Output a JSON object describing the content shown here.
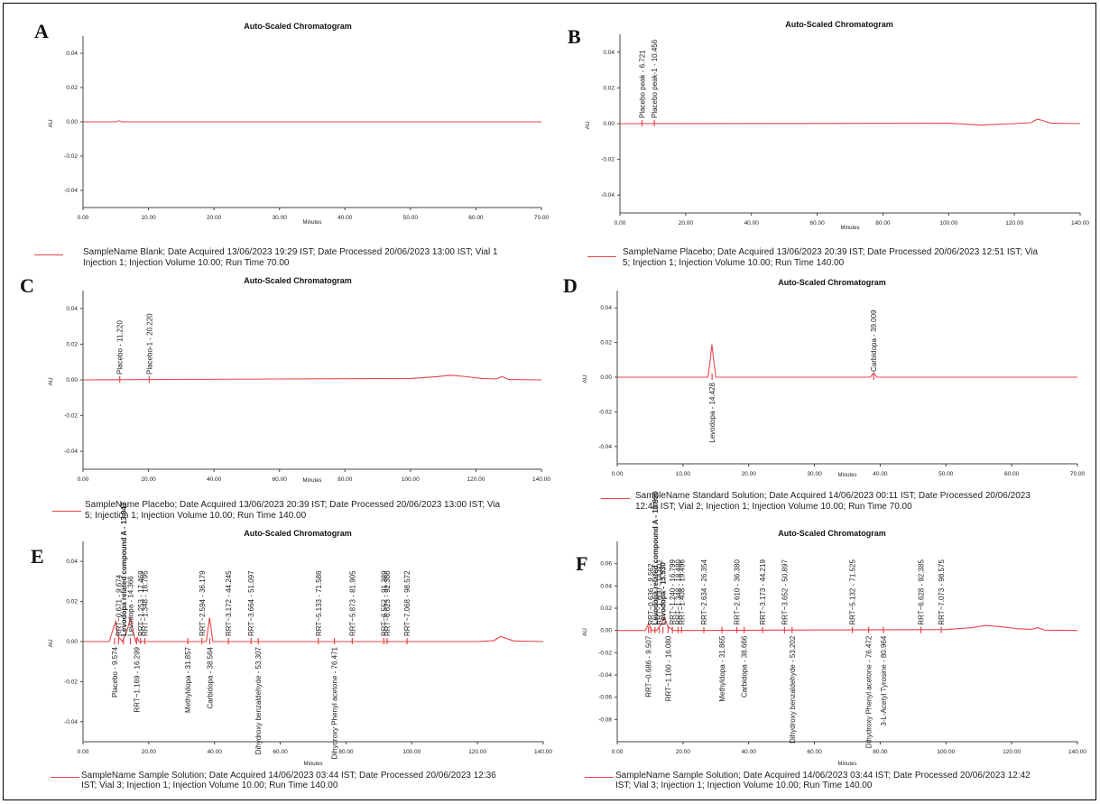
{
  "colors": {
    "trace": "#e8454a",
    "axis": "#444444",
    "text": "#222222"
  },
  "chart_data": [
    {
      "type": "line",
      "panel": "A",
      "title": "Auto-Scaled Chromatogram",
      "xlabel": "Minutes",
      "ylabel": "AU",
      "xlim": [
        0,
        70
      ],
      "ylim": [
        -0.05,
        0.05
      ],
      "xticks": [
        "0.00",
        "10.00",
        "20.00",
        "30.00",
        "40.00",
        "50.00",
        "60.00",
        "70.00"
      ],
      "yticks": [
        "0.04",
        "0.02",
        "0.00",
        "-0.02",
        "-0.04"
      ],
      "series": [
        {
          "x": [
            0,
            5,
            5.5,
            6,
            70
          ],
          "y": [
            0,
            0,
            0.0006,
            0,
            0
          ]
        }
      ],
      "peaks": [],
      "legend": [
        "SampleName Blank; Date Acquired 13/06/2023 19:29 IST; Date Processed 20/06/2023 13:00 IST; Vial 1",
        "Injection 1; Injection Volume 10.00; Run Time 70.00"
      ]
    },
    {
      "type": "line",
      "panel": "B",
      "title": "Auto-Scaled Chromatogram",
      "xlabel": "Minutes",
      "ylabel": "AU",
      "xlim": [
        0,
        140
      ],
      "ylim": [
        -0.05,
        0.05
      ],
      "xticks": [
        "0.00",
        "20.00",
        "40.00",
        "60.00",
        "80.00",
        "100.00",
        "120.00",
        "140.00"
      ],
      "yticks": [
        "0.04",
        "0.02",
        "0.00",
        "-0.02",
        "-0.04"
      ],
      "series": [
        {
          "x": [
            0,
            100,
            110,
            120,
            125,
            127,
            129,
            131,
            140
          ],
          "y": [
            0,
            0.0002,
            -0.0008,
            0,
            0.0005,
            0.0025,
            0.0015,
            0.0003,
            0
          ]
        }
      ],
      "peaks": [
        {
          "x": 6.721,
          "label": "Placebo peak - 6.721"
        },
        {
          "x": 10.456,
          "label": "Placebo peak-1 - 10.456"
        }
      ],
      "legend": [
        "SampleName Placebo; Date Acquired 13/06/2023 20:39 IST; Date Processed 20/06/2023 12:51 IST; Via",
        "5; Injection 1; Injection Volume 10.00; Run Time 140.00"
      ]
    },
    {
      "type": "line",
      "panel": "C",
      "title": "Auto-Scaled Chromatogram",
      "xlabel": "Minutes",
      "ylabel": "AU",
      "xlim": [
        0,
        140
      ],
      "ylim": [
        -0.05,
        0.05
      ],
      "xticks": [
        "0.00",
        "20.00",
        "40.00",
        "60.00",
        "80.00",
        "100.00",
        "120.00",
        "140.00"
      ],
      "yticks": [
        "0.04",
        "0.02",
        "0.00",
        "-0.02",
        "-0.04"
      ],
      "series": [
        {
          "x": [
            0,
            60,
            100,
            108,
            112,
            116,
            122,
            126,
            128,
            130,
            140
          ],
          "y": [
            0,
            0.0005,
            0.0008,
            0.0018,
            0.0026,
            0.002,
            0.0008,
            0.0005,
            0.0018,
            0.0002,
            0
          ]
        }
      ],
      "peaks": [
        {
          "x": 11.22,
          "label": "Placebo - 11.220"
        },
        {
          "x": 20.22,
          "label": "Placebo-1 - 20.220"
        }
      ],
      "legend": [
        "SampleName Placebo; Date Acquired 13/06/2023 20:39 IST; Date Processed 20/06/2023 13:00 IST; Via",
        "5; Injection 1; Injection Volume 10.00; Run Time 140.00"
      ]
    },
    {
      "type": "line",
      "panel": "D",
      "title": "Auto-Scaled Chromatogram",
      "xlabel": "Minutes",
      "ylabel": "AU",
      "xlim": [
        0,
        70
      ],
      "ylim": [
        -0.05,
        0.05
      ],
      "xticks": [
        "0.00",
        "10.00",
        "20.00",
        "30.00",
        "40.00",
        "50.00",
        "60.00",
        "70.00"
      ],
      "yticks": [
        "0.04",
        "0.02",
        "0.00",
        "-0.02",
        "-0.04"
      ],
      "series": [
        {
          "x": [
            0,
            13.8,
            14.2,
            14.4,
            14.6,
            15,
            38.5,
            39,
            39.5,
            70
          ],
          "y": [
            0,
            0,
            0.012,
            0.019,
            0.012,
            0,
            0,
            0.0025,
            0,
            0
          ]
        }
      ],
      "peaks": [
        {
          "x": 14.428,
          "label": "Levodopa - 14.428",
          "below": true
        },
        {
          "x": 39.009,
          "label": "Carbidopa - 39.009"
        }
      ],
      "legend": [
        "SampleName Standard Solution; Date Acquired 14/06/2023 00:11 IST; Date Processed 20/06/2023",
        "12:45 IST; Vial 2; Injection 1; Injection Volume 10.00; Run Time 70.00"
      ]
    },
    {
      "type": "line",
      "panel": "E",
      "title": "Auto-Scaled Chromatogram",
      "xlabel": "Minutes",
      "ylabel": "AU",
      "xlim": [
        0,
        140
      ],
      "ylim": [
        -0.05,
        0.05
      ],
      "xticks": [
        "0.00",
        "20.00",
        "40.00",
        "60.00",
        "80.00",
        "100.00",
        "120.00",
        "140.00"
      ],
      "yticks": [
        "0.04",
        "0.02",
        "0.00",
        "-0.02",
        "-0.04"
      ],
      "series": [
        {
          "x": [
            0,
            8,
            9.5,
            10,
            10.5,
            12,
            13.5,
            14.4,
            15.3,
            16,
            16.5,
            17,
            37.5,
            38.5,
            39.5,
            120,
            125,
            127,
            129,
            131,
            140
          ],
          "y": [
            0,
            0,
            0.008,
            0.01,
            0.003,
            0,
            0.006,
            0.012,
            0.005,
            0,
            0.002,
            0,
            0,
            0.012,
            0,
            0,
            0.0005,
            0.0025,
            0.0015,
            0.0003,
            0
          ]
        }
      ],
      "peaks": [
        {
          "x": 9.6,
          "label": "Placebo - 9.574",
          "below": true
        },
        {
          "x": 10.8,
          "label": "RRT~0.671 - 9.674"
        },
        {
          "x": 12.3,
          "label": "Levodopa related compound A - 13.947",
          "bold": true
        },
        {
          "x": 14.4,
          "label": "Levodopa - 14.366"
        },
        {
          "x": 16.3,
          "label": "RRT~1.169 - 16.299",
          "below": true
        },
        {
          "x": 17.5,
          "label": "RRT~1.253 - 17.469"
        },
        {
          "x": 18.8,
          "label": "RRT~1.348 - 18.795"
        },
        {
          "x": 31.857,
          "label": "Methyldopa - 31.857",
          "below": true
        },
        {
          "x": 36.179,
          "label": "RRT~2.594 - 36.179"
        },
        {
          "x": 38.564,
          "label": "Carbidopa - 38.564",
          "below": true
        },
        {
          "x": 44.245,
          "label": "RRT~3.172 - 44.245"
        },
        {
          "x": 51.097,
          "label": "RRT~3.664 - 51.097"
        },
        {
          "x": 53.307,
          "label": "Dihydroxy benzaldehyde - 53.307",
          "below": true
        },
        {
          "x": 71.586,
          "label": "RRT~5.133 - 71.586"
        },
        {
          "x": 76.471,
          "label": "Dihydroxy Phenyl acetone - 76.471",
          "below": true
        },
        {
          "x": 81.905,
          "label": "RRT~5.873 - 81.905"
        },
        {
          "x": 91.5,
          "label": "RRT~6.552 - 91.389"
        },
        {
          "x": 92.5,
          "label": "RRT~6.623 - 92.366"
        },
        {
          "x": 98.572,
          "label": "RRT~7.068 - 98.572"
        }
      ],
      "legend": [
        "SampleName Sample Solution; Date Acquired 14/06/2023 03:44 IST; Date Processed 20/06/2023 12:36",
        "IST; Vial 3; Injection 1; Injection Volume 10.00; Run Time 140.00"
      ]
    },
    {
      "type": "line",
      "panel": "F",
      "title": "Auto-Scaled Chromatogram",
      "xlabel": "Minutes",
      "ylabel": "AU",
      "xlim": [
        0,
        140
      ],
      "ylim": [
        -0.1,
        0.08
      ],
      "xticks": [
        "0.00",
        "20.00",
        "40.00",
        "60.00",
        "80.00",
        "100.00",
        "120.00",
        "140.00"
      ],
      "yticks": [
        "0.06",
        "0.04",
        "0.02",
        "0.00",
        "-0.02",
        "-0.04",
        "-0.06",
        "-0.08"
      ],
      "series": [
        {
          "x": [
            0,
            8.5,
            9.5,
            10.5,
            12,
            13.5,
            14.4,
            15.3,
            17,
            100,
            108,
            112,
            116,
            122,
            126,
            128,
            130,
            140
          ],
          "y": [
            0,
            0,
            0.006,
            0,
            0,
            0.006,
            0.012,
            0.004,
            0,
            0.0008,
            0.0025,
            0.0045,
            0.0035,
            0.0015,
            0.001,
            0.0025,
            0.0003,
            0
          ]
        }
      ],
      "peaks": [
        {
          "x": 9.507,
          "label": "RRT~0.686 - 9.507",
          "below": true
        },
        {
          "x": 10.2,
          "label": "RRT~0.636 - 9.562"
        },
        {
          "x": 11.5,
          "label": "Levodopa related compound A - 13.930",
          "bold": true
        },
        {
          "x": 12.8,
          "label": "RRT~1.000 - 14.602"
        },
        {
          "x": 13.9,
          "label": "Levodopa - 13.930",
          "bold": true
        },
        {
          "x": 15.5,
          "label": "RRT~1.160 - 16.080",
          "below": true
        },
        {
          "x": 16.8,
          "label": "RRT~1.240 - 16.799"
        },
        {
          "x": 18.5,
          "label": "RRT~1.348 - 18.480"
        },
        {
          "x": 19.6,
          "label": "RRT~1.408 - 19.496"
        },
        {
          "x": 26.354,
          "label": "RRT~2.634 - 26.354"
        },
        {
          "x": 31.865,
          "label": "Methyldopa - 31.865",
          "below": true
        },
        {
          "x": 36.38,
          "label": "RRT~2.610 - 36.380"
        },
        {
          "x": 38.6,
          "label": "Carbidopa - 38.666",
          "below": true
        },
        {
          "x": 44.219,
          "label": "RRT~3.173 - 44.219"
        },
        {
          "x": 50.897,
          "label": "RRT~3.652 - 50.897"
        },
        {
          "x": 53.202,
          "label": "Dihydroxy benzaldehyde - 53.202",
          "below": true
        },
        {
          "x": 71.525,
          "label": "RRT~5.132 - 71.525"
        },
        {
          "x": 76.472,
          "label": "Dihydroxy Phenyl acetone - 76.472",
          "below": true
        },
        {
          "x": 80.964,
          "label": "3-L-Acetyl Tyrosine - 80.964",
          "below": true
        },
        {
          "x": 92.385,
          "label": "RRT~6.628 - 92.385"
        },
        {
          "x": 98.575,
          "label": "RRT~7.073 - 98.575"
        }
      ],
      "legend": [
        "SampleName Sample Solution; Date Acquired 14/06/2023 03:44 IST; Date Processed 20/06/2023 12:42",
        "IST; Vial 3; Injection 1; Injection Volume 10.00; Run Time 140.00"
      ]
    }
  ]
}
